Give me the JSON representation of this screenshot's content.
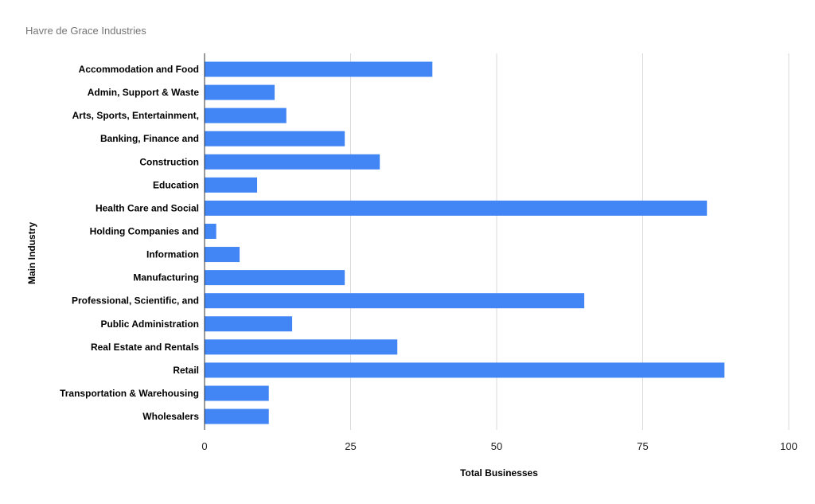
{
  "chart_data": {
    "type": "bar",
    "orientation": "horizontal",
    "title": "Havre de Grace Industries",
    "xlabel": "Total Businesses",
    "ylabel": "Main Industry",
    "xlim": [
      0,
      100
    ],
    "xticks": [
      0,
      25,
      50,
      75,
      100
    ],
    "grid": true,
    "bar_color": "#4285f4",
    "categories": [
      "Accommodation and Food",
      "Admin, Support & Waste",
      "Arts, Sports, Entertainment,",
      "Banking, Finance and",
      "Construction",
      "Education",
      "Health Care and Social",
      "Holding Companies and",
      "Information",
      "Manufacturing",
      "Professional, Scientific, and",
      "Public Administration",
      "Real Estate and Rentals",
      "Retail",
      "Transportation & Warehousing",
      "Wholesalers"
    ],
    "values": [
      39,
      12,
      14,
      24,
      30,
      9,
      86,
      2,
      6,
      24,
      65,
      15,
      33,
      89,
      11,
      11
    ]
  }
}
